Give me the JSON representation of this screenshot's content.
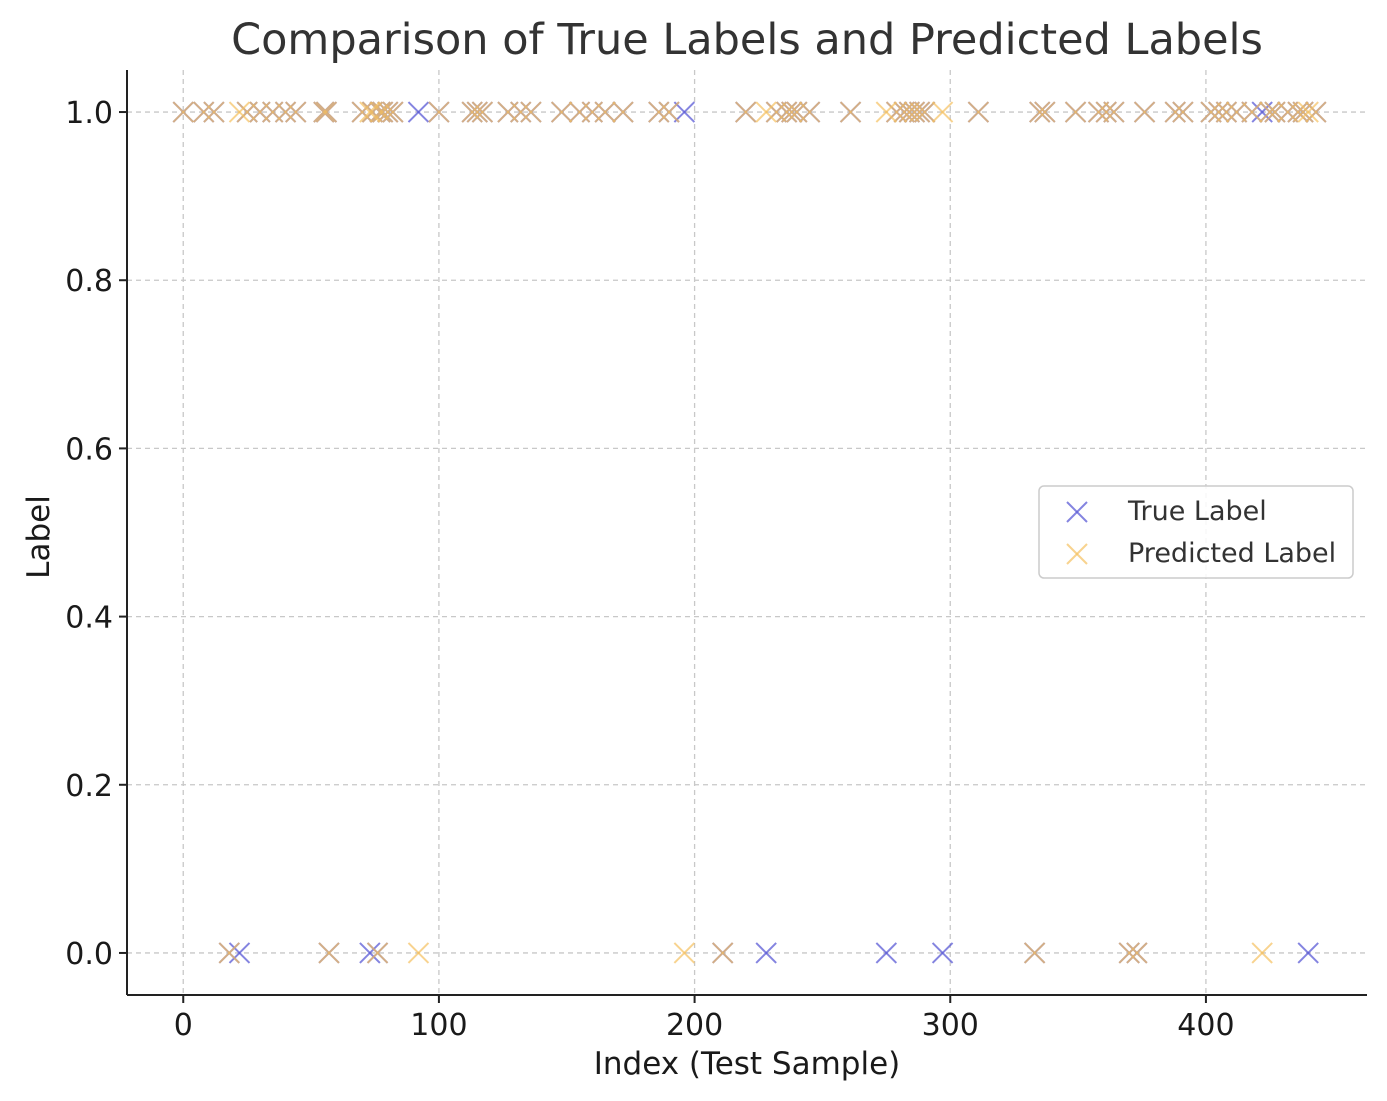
{
  "chart_data": {
    "type": "scatter",
    "title": "Comparison of True Labels and Predicted Labels",
    "xlabel": "Index (Test Sample)",
    "ylabel": "Label",
    "xlim": [
      -22,
      463
    ],
    "ylim": [
      -0.05,
      1.05
    ],
    "xticks": [
      0,
      100,
      200,
      300,
      400
    ],
    "xtick_labels": [
      "0",
      "100",
      "200",
      "300",
      "400"
    ],
    "yticks": [
      0.0,
      0.2,
      0.4,
      0.6,
      0.8,
      1.0
    ],
    "ytick_labels": [
      "0.0",
      "0.2",
      "0.4",
      "0.6",
      "0.8",
      "1.0"
    ],
    "grid": true,
    "legend_position": "center-right",
    "marker": "x",
    "series": [
      {
        "name": "True Label",
        "color": "#5b5bd6",
        "opacity": 0.75,
        "points": [
          [
            0,
            1
          ],
          [
            8,
            1
          ],
          [
            12,
            1
          ],
          [
            18,
            0
          ],
          [
            22,
            0
          ],
          [
            25,
            1
          ],
          [
            30,
            1
          ],
          [
            35,
            1
          ],
          [
            40,
            1
          ],
          [
            44,
            1
          ],
          [
            55,
            1
          ],
          [
            56,
            1
          ],
          [
            57,
            0
          ],
          [
            70,
            1
          ],
          [
            73,
            0
          ],
          [
            74,
            1
          ],
          [
            76,
            0
          ],
          [
            77,
            1
          ],
          [
            78,
            1
          ],
          [
            80,
            1
          ],
          [
            82,
            1
          ],
          [
            92,
            1
          ],
          [
            100,
            1
          ],
          [
            113,
            1
          ],
          [
            115,
            1
          ],
          [
            117,
            1
          ],
          [
            127,
            1
          ],
          [
            132,
            1
          ],
          [
            136,
            1
          ],
          [
            148,
            1
          ],
          [
            155,
            1
          ],
          [
            160,
            1
          ],
          [
            165,
            1
          ],
          [
            172,
            1
          ],
          [
            186,
            1
          ],
          [
            190,
            1
          ],
          [
            196,
            1
          ],
          [
            211,
            0
          ],
          [
            220,
            1
          ],
          [
            228,
            0
          ],
          [
            232,
            1
          ],
          [
            236,
            1
          ],
          [
            238,
            1
          ],
          [
            240,
            1
          ],
          [
            245,
            1
          ],
          [
            261,
            1
          ],
          [
            275,
            0
          ],
          [
            279,
            1
          ],
          [
            282,
            1
          ],
          [
            284,
            1
          ],
          [
            286,
            1
          ],
          [
            288,
            1
          ],
          [
            290,
            1
          ],
          [
            297,
            0
          ],
          [
            311,
            1
          ],
          [
            333,
            0
          ],
          [
            335,
            1
          ],
          [
            337,
            1
          ],
          [
            349,
            1
          ],
          [
            358,
            1
          ],
          [
            361,
            1
          ],
          [
            364,
            1
          ],
          [
            370,
            0
          ],
          [
            373,
            0
          ],
          [
            376,
            1
          ],
          [
            388,
            1
          ],
          [
            391,
            1
          ],
          [
            402,
            1
          ],
          [
            405,
            1
          ],
          [
            408,
            1
          ],
          [
            412,
            1
          ],
          [
            418,
            1
          ],
          [
            422,
            1
          ],
          [
            425,
            1
          ],
          [
            427,
            1
          ],
          [
            432,
            1
          ],
          [
            436,
            1
          ],
          [
            438,
            1
          ],
          [
            440,
            0
          ],
          [
            443,
            1
          ]
        ]
      },
      {
        "name": "Predicted Label",
        "color": "#f5c060",
        "opacity": 0.7,
        "points": [
          [
            0,
            1
          ],
          [
            8,
            1
          ],
          [
            12,
            1
          ],
          [
            18,
            0
          ],
          [
            22,
            1
          ],
          [
            25,
            1
          ],
          [
            30,
            1
          ],
          [
            35,
            1
          ],
          [
            40,
            1
          ],
          [
            44,
            1
          ],
          [
            55,
            1
          ],
          [
            56,
            1
          ],
          [
            57,
            0
          ],
          [
            70,
            1
          ],
          [
            73,
            1
          ],
          [
            74,
            1
          ],
          [
            76,
            0
          ],
          [
            77,
            1
          ],
          [
            78,
            1
          ],
          [
            80,
            1
          ],
          [
            82,
            1
          ],
          [
            92,
            0
          ],
          [
            100,
            1
          ],
          [
            113,
            1
          ],
          [
            115,
            1
          ],
          [
            117,
            1
          ],
          [
            127,
            1
          ],
          [
            132,
            1
          ],
          [
            136,
            1
          ],
          [
            148,
            1
          ],
          [
            155,
            1
          ],
          [
            160,
            1
          ],
          [
            165,
            1
          ],
          [
            172,
            1
          ],
          [
            186,
            1
          ],
          [
            190,
            1
          ],
          [
            196,
            0
          ],
          [
            211,
            0
          ],
          [
            220,
            1
          ],
          [
            228,
            1
          ],
          [
            232,
            1
          ],
          [
            236,
            1
          ],
          [
            238,
            1
          ],
          [
            240,
            1
          ],
          [
            245,
            1
          ],
          [
            261,
            1
          ],
          [
            275,
            1
          ],
          [
            279,
            1
          ],
          [
            282,
            1
          ],
          [
            284,
            1
          ],
          [
            286,
            1
          ],
          [
            288,
            1
          ],
          [
            290,
            1
          ],
          [
            297,
            1
          ],
          [
            311,
            1
          ],
          [
            333,
            0
          ],
          [
            335,
            1
          ],
          [
            337,
            1
          ],
          [
            349,
            1
          ],
          [
            358,
            1
          ],
          [
            361,
            1
          ],
          [
            364,
            1
          ],
          [
            370,
            0
          ],
          [
            373,
            0
          ],
          [
            376,
            1
          ],
          [
            388,
            1
          ],
          [
            391,
            1
          ],
          [
            402,
            1
          ],
          [
            405,
            1
          ],
          [
            408,
            1
          ],
          [
            412,
            1
          ],
          [
            418,
            1
          ],
          [
            422,
            0
          ],
          [
            425,
            1
          ],
          [
            427,
            1
          ],
          [
            432,
            1
          ],
          [
            436,
            1
          ],
          [
            438,
            1
          ],
          [
            440,
            1
          ],
          [
            443,
            1
          ]
        ]
      }
    ]
  }
}
